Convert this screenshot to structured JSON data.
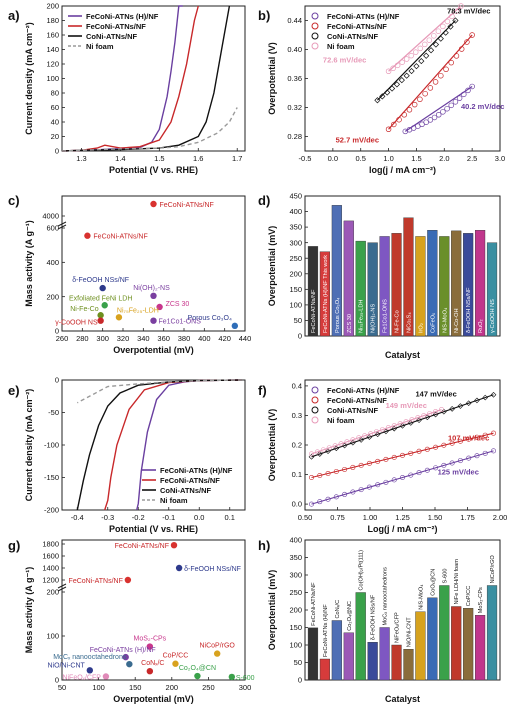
{
  "figure": {
    "panels": [
      "a)",
      "b)",
      "c)",
      "d)",
      "e)",
      "f)",
      "g)",
      "h)"
    ]
  },
  "colors": {
    "purple": "#6a3fa0",
    "red": "#c8282a",
    "black": "#111111",
    "grey": "#9a9a9a",
    "pink": "#e79ab8"
  },
  "chart_data": [
    {
      "panel": "a)",
      "type": "line",
      "xlabel": "Potential (V vs. RHE)",
      "ylabel": "Current density (mA cm⁻²)",
      "xlim": [
        1.25,
        1.72
      ],
      "ylim": [
        0,
        200
      ],
      "xticks": [
        "1.3",
        "1.4",
        "1.5",
        "1.6",
        "1.7"
      ],
      "yticks": [
        "0",
        "20",
        "40",
        "60",
        "80",
        "100",
        "120",
        "140",
        "160",
        "180",
        "200"
      ],
      "legend": [
        "FeCoNi-ATNs (H)/NF",
        "FeCoNi-ATNs/NF",
        "CoNi-ATNs/NF",
        "Ni foam"
      ],
      "series": [
        {
          "name": "FeCoNi-ATNs (H)/NF",
          "color": "#6a3fa0",
          "dash": false,
          "x": [
            1.25,
            1.3,
            1.35,
            1.38,
            1.4,
            1.45,
            1.48,
            1.5,
            1.52,
            1.53,
            1.54,
            1.55,
            1.555,
            1.56
          ],
          "y": [
            0,
            1,
            2,
            3,
            3,
            5,
            12,
            30,
            75,
            110,
            150,
            200,
            200,
            200
          ]
        },
        {
          "name": "FeCoNi-ATNs/NF",
          "color": "#c8282a",
          "dash": false,
          "x": [
            1.25,
            1.3,
            1.34,
            1.36,
            1.4,
            1.45,
            1.5,
            1.53,
            1.55,
            1.57,
            1.58,
            1.59,
            1.6
          ],
          "y": [
            0,
            1,
            4,
            8,
            4,
            6,
            15,
            40,
            75,
            120,
            150,
            180,
            200
          ]
        },
        {
          "name": "CoNi-ATNs/NF",
          "color": "#111111",
          "dash": false,
          "x": [
            1.25,
            1.3,
            1.4,
            1.5,
            1.55,
            1.6,
            1.62,
            1.64,
            1.66,
            1.68
          ],
          "y": [
            0,
            1,
            2,
            4,
            8,
            20,
            40,
            80,
            140,
            200
          ]
        },
        {
          "name": "Ni foam",
          "color": "#9a9a9a",
          "dash": true,
          "x": [
            1.25,
            1.3,
            1.4,
            1.5,
            1.55,
            1.6,
            1.65,
            1.68,
            1.7
          ],
          "y": [
            0,
            1,
            3,
            4,
            6,
            12,
            25,
            40,
            60
          ]
        }
      ]
    },
    {
      "panel": "b)",
      "type": "scatter",
      "xlabel": "log(j / mA cm⁻²)",
      "ylabel": "Overpotential (V)",
      "xlim": [
        -0.5,
        3.0
      ],
      "ylim": [
        0.26,
        0.46
      ],
      "xticks": [
        "-0.5",
        "0.0",
        "0.5",
        "1.0",
        "1.5",
        "2.0",
        "2.5",
        "3.0"
      ],
      "yticks": [
        "0.28",
        "0.32",
        "0.36",
        "0.40",
        "0.44"
      ],
      "legend": [
        "FeCoNi-ATNs (H)/NF",
        "FeCoNi-ATNs/NF",
        "CoNi-ATNs/NF",
        "Ni foam"
      ],
      "annotations": [
        "78.3 mV/dec",
        "72.6 mV/dec",
        "40.2 mV/dec",
        "52.7 mV/dec"
      ],
      "series": [
        {
          "name": "FeCoNi-ATNs (H)/NF",
          "color": "#6a3fa0",
          "x0": 1.3,
          "x1": 2.5,
          "y0": 0.287,
          "y1": 0.349
        },
        {
          "name": "FeCoNi-ATNs/NF",
          "color": "#c8282a",
          "x0": 1.0,
          "x1": 2.5,
          "y0": 0.29,
          "y1": 0.42
        },
        {
          "name": "CoNi-ATNs/NF",
          "color": "#111111",
          "x0": 0.8,
          "x1": 2.2,
          "y0": 0.33,
          "y1": 0.44
        },
        {
          "name": "Ni foam",
          "color": "#e79ab8",
          "x0": 1.0,
          "x1": 2.3,
          "y0": 0.37,
          "y1": 0.46
        }
      ]
    },
    {
      "panel": "c)",
      "type": "scatter",
      "xlabel": "Overpotential (mV)",
      "ylabel": "Mass activity (A g⁻¹)",
      "xlim": [
        260,
        440
      ],
      "xticks": [
        "260",
        "280",
        "300",
        "320",
        "340",
        "360",
        "380",
        "400",
        "420",
        "440"
      ],
      "yticks": [
        "0",
        "200",
        "400",
        "600",
        "4000"
      ],
      "points": [
        {
          "label": "FeCoNi-ATNs/NF",
          "x": 350,
          "y": 4300,
          "color": "#d8322f",
          "label_color": "#c8282a"
        },
        {
          "label": "FeCoNi-ATNs/NF",
          "x": 285,
          "y": 555,
          "color": "#d8322f",
          "label_color": "#c8282a"
        },
        {
          "label": "δ-FeOOH NSs/NF",
          "x": 300,
          "y": 250,
          "color": "#2e3a8c",
          "label_color": "#2e3a8c"
        },
        {
          "label": "Ni(OH)₂-NS",
          "x": 350,
          "y": 205,
          "color": "#7a3fa0",
          "label_color": "#7a3fa0"
        },
        {
          "label": "ZCS 30",
          "x": 356,
          "y": 140,
          "color": "#c8368c",
          "label_color": "#c8368c"
        },
        {
          "label": "Exfoliated FeNi LDH",
          "x": 302,
          "y": 150,
          "color": "#3aa14a",
          "label_color": "#6d8f1e"
        },
        {
          "label": "Ni-Fe-Co",
          "x": 298,
          "y": 92,
          "color": "#6d8f1e",
          "label_color": "#6d8f1e"
        },
        {
          "label": "Ni₇₅Fe₂₅-LDH",
          "x": 316,
          "y": 80,
          "color": "#d8a21e",
          "label_color": "#d8a21e"
        },
        {
          "label": "γ-CoOOH NS",
          "x": 298,
          "y": 60,
          "color": "#c8282a",
          "label_color": "#c8282a"
        },
        {
          "label": "Fe1Co1-ONS",
          "x": 350,
          "y": 60,
          "color": "#7a3fa0",
          "label_color": "#7a3fa0"
        },
        {
          "label": "Porous Co₃O₄",
          "x": 430,
          "y": 30,
          "color": "#2e6db8",
          "label_color": "#2e3a8c"
        }
      ]
    },
    {
      "panel": "d)",
      "type": "bar",
      "xlabel": "Catalyst",
      "ylabel": "Overpotential (mV)",
      "ylim": [
        0,
        450
      ],
      "yticks": [
        "0",
        "50",
        "100",
        "150",
        "200",
        "250",
        "300",
        "350",
        "400",
        "450"
      ],
      "categories": [
        "FeCoNi-ATNs/NF",
        "FeCoNi-ATNs (H)/NF This work",
        "Porous Co₃O₄",
        "ZCS 30",
        "Ni₇₅Fe₂₅-LDH",
        "Ni(OH)₂-NS",
        "Fe1Co1-ONS",
        "Ni-Fe-Co",
        "NiCo₂S₄",
        "IrO₂",
        "CoFeOₓ",
        "NiS-MoO₄",
        "Ni-Co-OH",
        "δ-FeOOH NSs/NF",
        "RuO₂",
        "γ-CoOOH NS"
      ],
      "values": [
        288,
        271,
        420,
        370,
        305,
        300,
        320,
        330,
        380,
        320,
        340,
        320,
        338,
        330,
        340,
        300
      ],
      "colors": [
        "#333333",
        "#d63b3b",
        "#4f6fb5",
        "#9b59b6",
        "#3aa14a",
        "#3a6b8f",
        "#7e57c2",
        "#c0392b",
        "#c0392b",
        "#d6a21e",
        "#3a6bb5",
        "#6a8f2a",
        "#8a6d3b",
        "#3a4a9a",
        "#c0368c",
        "#3a8fa1"
      ]
    },
    {
      "panel": "e)",
      "type": "line",
      "xlabel": "Potential (V vs. RHE)",
      "ylabel": "Current density (mA cm⁻²)",
      "xlim": [
        -0.45,
        0.15
      ],
      "ylim": [
        -200,
        0
      ],
      "xticks": [
        "-0.4",
        "-0.3",
        "-0.2",
        "-0.1",
        "0.0",
        "0.1"
      ],
      "yticks": [
        "-200",
        "-150",
        "-100",
        "-50",
        "0"
      ],
      "legend": [
        "FeCoNi-ATNs (H)/NF",
        "FeCoNi-ATNs/NF",
        "CoNi-ATNs/NF",
        "Ni foam"
      ],
      "series": [
        {
          "name": "FeCoNi-ATNs (H)/NF",
          "color": "#6a3fa0",
          "dash": false,
          "x": [
            0.14,
            0.0,
            -0.05,
            -0.1,
            -0.14,
            -0.17,
            -0.19,
            -0.2,
            -0.205
          ],
          "y": [
            0,
            -1,
            -3,
            -8,
            -30,
            -80,
            -140,
            -190,
            -200
          ]
        },
        {
          "name": "FeCoNi-ATNs/NF",
          "color": "#c8282a",
          "dash": false,
          "x": [
            0.14,
            0.0,
            -0.1,
            -0.18,
            -0.23,
            -0.27,
            -0.29,
            -0.3,
            -0.31
          ],
          "y": [
            0,
            -1,
            -4,
            -15,
            -45,
            -100,
            -150,
            -185,
            -200
          ]
        },
        {
          "name": "CoNi-ATNs/NF",
          "color": "#111111",
          "dash": false,
          "x": [
            0.14,
            0.0,
            -0.1,
            -0.2,
            -0.26,
            -0.3,
            -0.33,
            -0.36,
            -0.38,
            -0.4
          ],
          "y": [
            0,
            -1,
            -3,
            -8,
            -20,
            -40,
            -70,
            -115,
            -155,
            -200
          ]
        },
        {
          "name": "Ni foam",
          "color": "#9a9a9a",
          "dash": true,
          "x": [
            0.14,
            0.0,
            -0.1,
            -0.2,
            -0.3,
            -0.36,
            -0.4
          ],
          "y": [
            0,
            -1,
            -3,
            -6,
            -10,
            -25,
            -35
          ]
        }
      ]
    },
    {
      "panel": "f)",
      "type": "scatter",
      "xlabel": "Log(j / mA cm⁻²)",
      "ylabel": "Overpotential (V)",
      "xlim": [
        0.5,
        2.0
      ],
      "ylim": [
        -0.02,
        0.42
      ],
      "xticks": [
        "0.50",
        "0.75",
        "1.00",
        "1.25",
        "1.50",
        "1.75",
        "2.00"
      ],
      "yticks": [
        "0.0",
        "0.1",
        "0.2",
        "0.3",
        "0.4"
      ],
      "legend": [
        "FeCoNi-ATNs (H)/NF",
        "FeCoNi-ATNs/NF",
        "CoNi-ATNs/NF",
        "Ni foam"
      ],
      "annotations": [
        "147 mV/dec",
        "149 mV/dec",
        "107 mV/dec",
        "125 mV/dec"
      ],
      "series": [
        {
          "name": "FeCoNi-ATNs (H)/NF",
          "color": "#6a3fa0",
          "x0": 0.55,
          "x1": 1.95,
          "y0": 0.0,
          "y1": 0.18
        },
        {
          "name": "FeCoNi-ATNs/NF",
          "color": "#c8282a",
          "x0": 0.55,
          "x1": 1.95,
          "y0": 0.09,
          "y1": 0.24
        },
        {
          "name": "CoNi-ATNs/NF",
          "color": "#111111",
          "x0": 0.55,
          "x1": 1.95,
          "y0": 0.16,
          "y1": 0.37
        },
        {
          "name": "Ni foam",
          "color": "#e79ab8",
          "x0": 0.55,
          "x1": 1.55,
          "y0": 0.17,
          "y1": 0.32
        }
      ]
    },
    {
      "panel": "g)",
      "type": "scatter",
      "xlabel": "Overpotential (mV)",
      "ylabel": "Mass activity (A g⁻¹)",
      "xlim": [
        50,
        300
      ],
      "xticks": [
        "50",
        "100",
        "150",
        "200",
        "250",
        "300"
      ],
      "yticks": [
        "0",
        "100",
        "200",
        "1200",
        "1400",
        "1600",
        "1800"
      ],
      "points": [
        {
          "label": "FeCoNi-ATNs/NF",
          "x": 203,
          "y": 1780,
          "color": "#d8322f",
          "label_color": "#c8282a"
        },
        {
          "label": "δ-FeOOH NSs/NF",
          "x": 210,
          "y": 1400,
          "color": "#2e3a8c",
          "label_color": "#2e3a8c"
        },
        {
          "label": "FeCoNi-ATNs/NF",
          "x": 140,
          "y": 1200,
          "color": "#d8322f",
          "label_color": "#c8282a"
        },
        {
          "label": "MoS₂-CPs",
          "x": 170,
          "y": 76,
          "color": "#c8368c",
          "label_color": "#c8368c"
        },
        {
          "label": "FeCoNi-ATNs (H)/NF",
          "x": 137,
          "y": 52,
          "color": "#7a3fa0",
          "label_color": "#7a3fa0"
        },
        {
          "label": "MoCₓ nanooctahedrons",
          "x": 142,
          "y": 36,
          "color": "#3a6b8f",
          "label_color": "#3a6b8f"
        },
        {
          "label": "NiO/Ni-CNT",
          "x": 88,
          "y": 22,
          "color": "#2e3a8c",
          "label_color": "#2e3a8c"
        },
        {
          "label": "NiFeOₓ/CFP",
          "x": 110,
          "y": 8,
          "color": "#e08ab8",
          "label_color": "#e08ab8"
        },
        {
          "label": "CoNₓ/C",
          "x": 170,
          "y": 20,
          "color": "#c8282a",
          "label_color": "#c8282a"
        },
        {
          "label": "CoP/CC",
          "x": 205,
          "y": 37,
          "color": "#d8a21e",
          "label_color": "#c8282a"
        },
        {
          "label": "Co₂O₄@CN",
          "x": 235,
          "y": 9,
          "color": "#3aa14a",
          "label_color": "#3aa14a"
        },
        {
          "label": "NiCoP/rGO",
          "x": 262,
          "y": 60,
          "color": "#d8a21e",
          "label_color": "#c8282a"
        },
        {
          "label": "S-600",
          "x": 282,
          "y": 7,
          "color": "#3aa14a",
          "label_color": "#3aa14a"
        }
      ]
    },
    {
      "panel": "h)",
      "type": "bar",
      "xlabel": "Catalyst",
      "ylabel": "Overpotential (mV)",
      "ylim": [
        0,
        400
      ],
      "yticks": [
        "0",
        "50",
        "100",
        "150",
        "200",
        "250",
        "300",
        "350",
        "400"
      ],
      "categories": [
        "FeCoNi-ATNs/NF",
        "FeCoNi-ATNs (H)/NF",
        "CoNₓ/C",
        "Co₂O₄@NC",
        "Co(OH)₂/Pt(111)",
        "δ-FeOOH NSs/NF",
        "MoCₓ nanooctahedrons",
        "NiFeOₓ/CFP",
        "NiO/Ni-CNT",
        "NiS-MoO₄",
        "CoOₓ@CN",
        "S-600",
        "NiFe LDH/Ni foam",
        "CoP/CC",
        "MoS₂-CPs",
        "NiCoP/rGO"
      ],
      "values": [
        149,
        60,
        170,
        135,
        250,
        108,
        150,
        100,
        88,
        195,
        235,
        270,
        210,
        205,
        185,
        270
      ],
      "colors": [
        "#333333",
        "#d63b3b",
        "#4f6fb5",
        "#9b59b6",
        "#3aa14a",
        "#3a4a9a",
        "#7e57c2",
        "#c0392b",
        "#8a6d3b",
        "#d6a21e",
        "#3a6bb5",
        "#3aa14a",
        "#c0392b",
        "#8a6d3b",
        "#c0368c",
        "#3a8fa1"
      ]
    }
  ]
}
